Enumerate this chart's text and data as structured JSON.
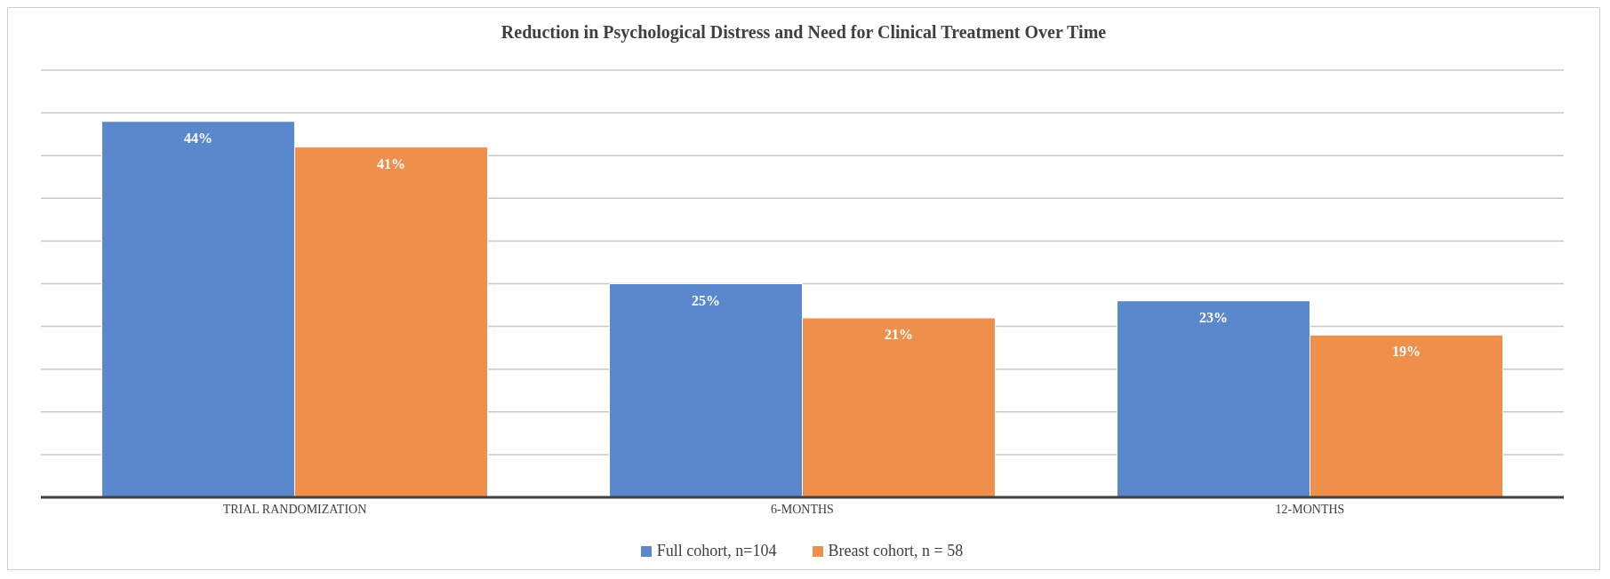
{
  "chart_data": {
    "type": "bar",
    "title": "Reduction in Psychological Distress and Need for Clinical Treatment Over Time",
    "categories": [
      "TRIAL RANDOMIZATION",
      "6-MONTHS",
      "12-MONTHS"
    ],
    "series": [
      {
        "name": "Full cohort, n=104",
        "color": "#5b87cc",
        "values": [
          44,
          25,
          23
        ],
        "value_labels": [
          "44%",
          "25%",
          "23%"
        ]
      },
      {
        "name": "Breast cohort, n = 58",
        "color": "#ee8f4b",
        "values": [
          41,
          21,
          19
        ],
        "value_labels": [
          "41%",
          "21%",
          "19%"
        ]
      }
    ],
    "tick_labels": "x",
    "grid": "y",
    "legend": "bottom"
  }
}
